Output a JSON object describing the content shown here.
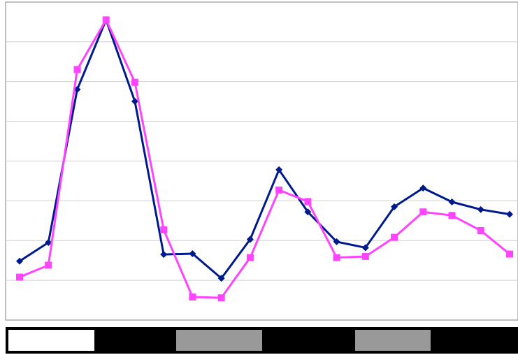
{
  "chart_data": {
    "type": "line",
    "title": "",
    "xlabel": "",
    "ylabel": "",
    "x": [
      1,
      2,
      3,
      4,
      5,
      6,
      7,
      8,
      9,
      10,
      11,
      12,
      13,
      14,
      15,
      16,
      17,
      18
    ],
    "ylim": [
      0,
      8
    ],
    "grid": true,
    "legend": "none",
    "series": [
      {
        "color": "#001A8C",
        "marker": "diamond",
        "values": [
          1.48,
          1.95,
          5.8,
          7.55,
          5.5,
          1.65,
          1.67,
          1.05,
          2.03,
          3.78,
          2.72,
          1.97,
          1.82,
          2.85,
          3.32,
          2.97,
          2.78,
          2.66
        ]
      },
      {
        "color": "#FF44FF",
        "marker": "square",
        "values": [
          1.08,
          1.38,
          6.3,
          7.55,
          5.98,
          2.27,
          0.58,
          0.56,
          1.57,
          3.27,
          2.98,
          1.57,
          1.6,
          2.08,
          2.72,
          2.63,
          2.25,
          1.66
        ]
      }
    ]
  },
  "axis_bar": {
    "segments": [
      {
        "fill": "#ffffff"
      },
      {
        "fill": "#000000"
      },
      {
        "fill": "#999999"
      },
      {
        "fill": "#000000"
      },
      {
        "fill": "#999999"
      },
      {
        "fill": "#000000"
      }
    ]
  }
}
